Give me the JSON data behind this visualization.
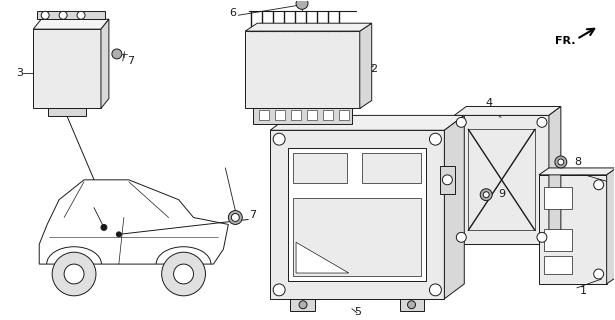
{
  "bg_color": "#ffffff",
  "line_color": "#1a1a1a",
  "fig_width": 6.15,
  "fig_height": 3.2,
  "dpi": 100,
  "lw": 0.7,
  "gray_fill": "#d8d8d8",
  "light_gray": "#ebebeb",
  "mid_gray": "#b0b0b0"
}
